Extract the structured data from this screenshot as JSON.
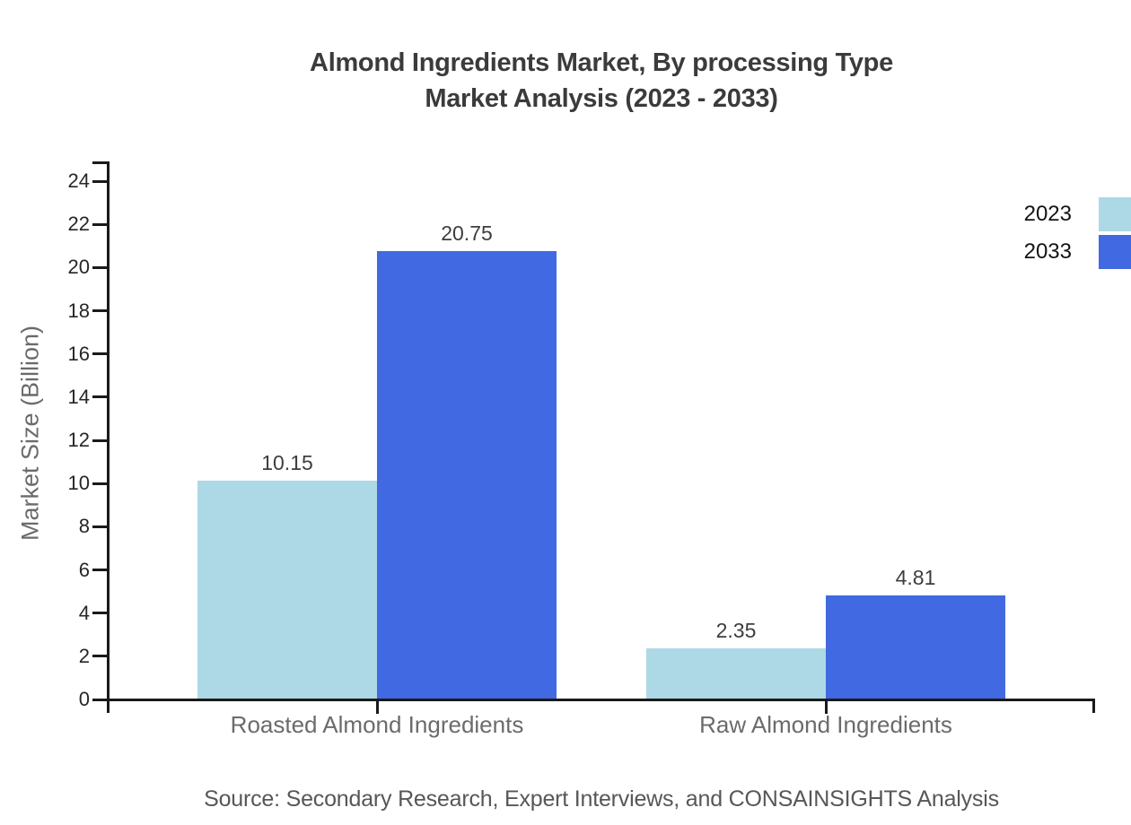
{
  "title": {
    "line1": "Almond Ingredients Market, By processing Type",
    "line2": "Market Analysis (2023 - 2033)"
  },
  "source": "Source: Secondary Research, Expert Interviews, and CONSAINSIGHTS Analysis",
  "chart_data": {
    "type": "bar",
    "title": "Almond Ingredients Market, By processing Type Market Analysis (2023 - 2033)",
    "categories": [
      "Roasted Almond Ingredients",
      "Raw Almond Ingredients"
    ],
    "series": [
      {
        "name": "2023",
        "color": "#add8e6",
        "values": [
          10.15,
          2.35
        ]
      },
      {
        "name": "2033",
        "color": "#4169e1",
        "values": [
          20.75,
          4.81
        ]
      }
    ],
    "value_labels": [
      "10.15",
      "20.75",
      "2.35",
      "4.81"
    ],
    "xlabel": "",
    "ylabel": "Market Size (Billion)",
    "ylim": [
      0,
      24
    ],
    "yticks": [
      0,
      2,
      4,
      6,
      8,
      10,
      12,
      14,
      16,
      18,
      20,
      22,
      24
    ],
    "grid": false,
    "legend_position": "top-right",
    "axis_color": "#1a1a1a"
  }
}
